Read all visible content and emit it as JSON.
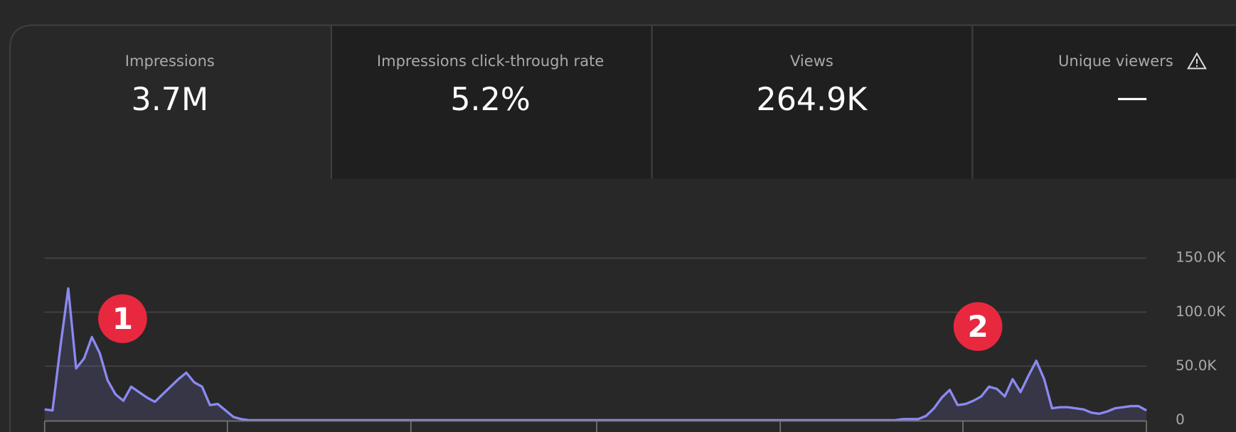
{
  "cards": [
    {
      "label": "Impressions",
      "value": "3.7M"
    },
    {
      "label": "Impressions click-through rate",
      "value": "5.2%"
    },
    {
      "label": "Views",
      "value": "264.9K"
    },
    {
      "label": "Unique viewers",
      "value": "—"
    }
  ],
  "chart_data": {
    "type": "line",
    "series": [
      {
        "color": "#8b89f2",
        "values": [
          10000,
          9000,
          68000,
          122000,
          48000,
          57000,
          77000,
          62000,
          37000,
          24000,
          18000,
          31000,
          26000,
          21000,
          17000,
          24000,
          31000,
          38000,
          44000,
          35000,
          31000,
          14000,
          15000,
          9000,
          3000,
          1000,
          0,
          0,
          0,
          0,
          0,
          0,
          0,
          0,
          0,
          0,
          0,
          0,
          0,
          0,
          0,
          0,
          0,
          0,
          0,
          0,
          0,
          0,
          0,
          0,
          0,
          0,
          0,
          0,
          0,
          0,
          0,
          0,
          0,
          0,
          0,
          0,
          0,
          0,
          0,
          0,
          0,
          0,
          0,
          0,
          0,
          0,
          0,
          0,
          0,
          0,
          0,
          0,
          0,
          0,
          0,
          0,
          0,
          0,
          0,
          0,
          0,
          0,
          0,
          0,
          0,
          0,
          0,
          0,
          0,
          0,
          0,
          0,
          0,
          0,
          0,
          0,
          0,
          0,
          0,
          0,
          0,
          0,
          0,
          1000,
          1000,
          1000,
          4000,
          11000,
          21000,
          28000,
          14000,
          15000,
          18000,
          22000,
          31000,
          29000,
          22000,
          38000,
          26000,
          41000,
          55000,
          38000,
          11000,
          12000,
          12000,
          11000,
          10000,
          7000,
          6000,
          8000,
          11000,
          12000,
          13000,
          13000,
          9000
        ]
      }
    ],
    "ylim": [
      0,
      150000
    ],
    "yticks": [
      0,
      {
        "value": 50000,
        "label": "50.0K"
      },
      {
        "value": 100000,
        "label": "100.0K"
      },
      {
        "value": 150000,
        "label": "150.0K"
      }
    ],
    "grid": true,
    "annotations": [
      "1",
      "2"
    ]
  }
}
